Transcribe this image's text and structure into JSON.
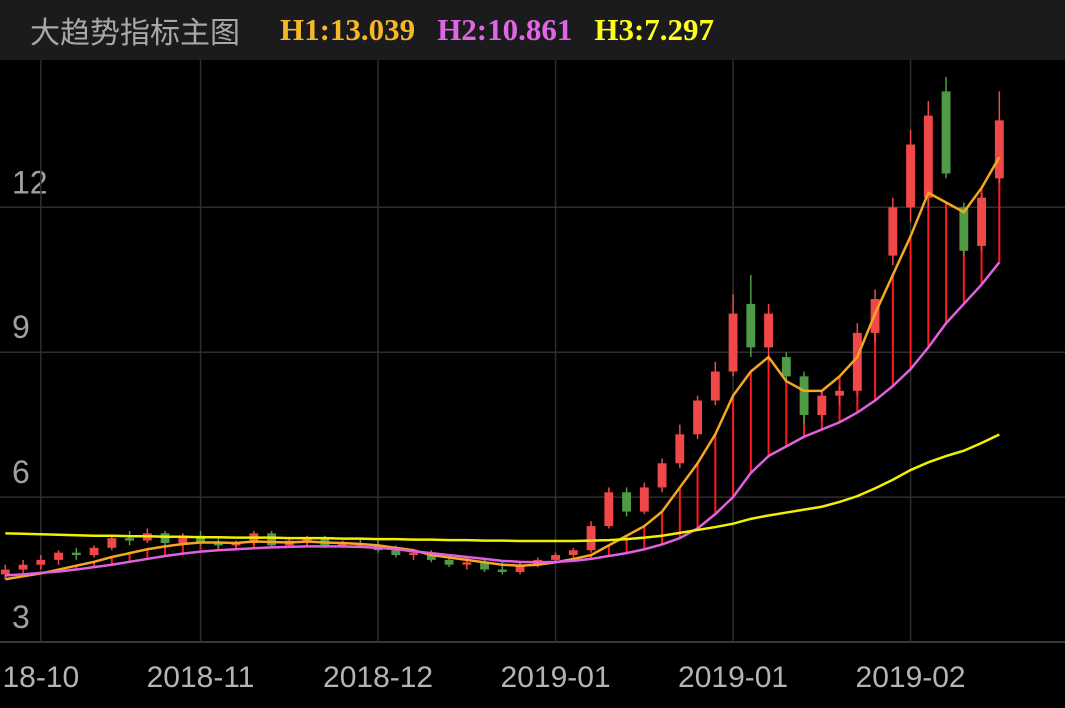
{
  "header": {
    "title": "大趋势指标主图"
  },
  "chart_data": {
    "type": "candlestick",
    "x": [
      0,
      1,
      2,
      3,
      4,
      5,
      6,
      7,
      8,
      9,
      10,
      11,
      12,
      13,
      14,
      15,
      16,
      17,
      18,
      19,
      20,
      21,
      22,
      23,
      24,
      25,
      26,
      27,
      28,
      29,
      30,
      31,
      32,
      33,
      34,
      35,
      36,
      37,
      38,
      39,
      40,
      41,
      42,
      43,
      44,
      45,
      46,
      47,
      48,
      49,
      50,
      51,
      52,
      53,
      54,
      55,
      56
    ],
    "xlim": [
      -0.3,
      59.7
    ],
    "xticks": [
      {
        "value": 2,
        "label": "18-10"
      },
      {
        "value": 11,
        "label": "2018-11"
      },
      {
        "value": 21,
        "label": "2018-12"
      },
      {
        "value": 31,
        "label": "2019-01"
      },
      {
        "value": 41,
        "label": "2019-01"
      },
      {
        "value": 51,
        "label": "2019-02"
      }
    ],
    "ylim": [
      3,
      15.05
    ],
    "yticks": [
      3,
      6,
      9,
      12
    ],
    "grid": true,
    "up_color": "#f04848",
    "down_color": "#4f9a46",
    "spread_up_color": "#ff1a1a",
    "spread_down_color": "#3355ff",
    "open": [
      4.4,
      4.5,
      4.6,
      4.7,
      4.85,
      4.8,
      4.95,
      5.15,
      5.1,
      5.25,
      5.05,
      5.2,
      5.05,
      5.0,
      5.05,
      5.25,
      5.0,
      5.1,
      5.15,
      5.0,
      5.05,
      5.0,
      4.9,
      4.8,
      4.85,
      4.7,
      4.6,
      4.65,
      4.5,
      4.45,
      4.6,
      4.7,
      4.8,
      4.9,
      5.4,
      6.1,
      5.7,
      6.2,
      6.7,
      7.3,
      8.0,
      8.6,
      10.0,
      9.1,
      8.9,
      8.5,
      7.7,
      8.1,
      8.2,
      9.4,
      11.0,
      12.0,
      12.2,
      14.4,
      12.0,
      11.2,
      12.6
    ],
    "high": [
      4.6,
      4.7,
      4.8,
      4.9,
      4.95,
      5.0,
      5.2,
      5.3,
      5.35,
      5.3,
      5.25,
      5.3,
      5.15,
      5.1,
      5.3,
      5.3,
      5.15,
      5.2,
      5.2,
      5.1,
      5.15,
      5.1,
      5.0,
      4.9,
      4.9,
      4.8,
      4.75,
      4.7,
      4.6,
      4.65,
      4.75,
      4.85,
      4.95,
      5.5,
      6.2,
      6.2,
      6.3,
      6.8,
      7.5,
      8.1,
      8.8,
      10.2,
      10.6,
      10.0,
      9.0,
      8.6,
      8.2,
      8.3,
      9.6,
      10.3,
      12.2,
      13.6,
      14.2,
      14.7,
      12.1,
      12.3,
      14.4
    ],
    "low": [
      4.3,
      4.4,
      4.5,
      4.6,
      4.7,
      4.75,
      4.9,
      5.0,
      5.05,
      5.0,
      5.0,
      5.0,
      4.95,
      4.9,
      5.0,
      4.95,
      4.95,
      5.0,
      4.95,
      4.95,
      4.95,
      4.85,
      4.75,
      4.7,
      4.65,
      4.55,
      4.5,
      4.45,
      4.4,
      4.4,
      4.55,
      4.65,
      4.75,
      4.85,
      5.35,
      5.6,
      5.65,
      6.1,
      6.6,
      7.2,
      7.9,
      8.5,
      8.9,
      8.8,
      8.4,
      7.5,
      7.6,
      7.9,
      8.1,
      9.2,
      10.8,
      11.7,
      12.0,
      12.6,
      11.0,
      11.1,
      12.5
    ],
    "close": [
      4.5,
      4.6,
      4.7,
      4.85,
      4.8,
      4.95,
      5.15,
      5.1,
      5.25,
      5.05,
      5.2,
      5.05,
      5.0,
      5.05,
      5.25,
      5.0,
      5.1,
      5.15,
      5.0,
      5.05,
      5.0,
      4.9,
      4.8,
      4.85,
      4.7,
      4.6,
      4.65,
      4.5,
      4.45,
      4.6,
      4.7,
      4.8,
      4.9,
      5.4,
      6.1,
      5.7,
      6.2,
      6.7,
      7.3,
      8.0,
      8.6,
      9.8,
      9.1,
      9.8,
      8.5,
      7.7,
      8.1,
      8.2,
      9.4,
      10.1,
      12.0,
      13.3,
      13.9,
      12.7,
      11.1,
      12.2,
      13.8
    ],
    "series": [
      {
        "label": "H1:13.039",
        "color": "#f5a623",
        "text_color": "#f5b829",
        "values": [
          4.3,
          4.36,
          4.42,
          4.5,
          4.58,
          4.66,
          4.76,
          4.84,
          4.92,
          4.98,
          5.03,
          5.06,
          5.06,
          5.05,
          5.08,
          5.07,
          5.06,
          5.08,
          5.06,
          5.05,
          5.03,
          5.0,
          4.95,
          4.9,
          4.8,
          4.75,
          4.7,
          4.65,
          4.6,
          4.58,
          4.6,
          4.65,
          4.72,
          4.8,
          5.0,
          5.2,
          5.4,
          5.7,
          6.2,
          6.7,
          7.3,
          8.1,
          8.6,
          8.9,
          8.4,
          8.2,
          8.2,
          8.5,
          8.9,
          9.8,
          10.6,
          11.4,
          12.3,
          12.1,
          11.9,
          12.4,
          13.039
        ]
      },
      {
        "label": "H2:10.861",
        "color": "#e060e0",
        "text_color": "#e066e6",
        "values": [
          4.38,
          4.4,
          4.43,
          4.46,
          4.5,
          4.55,
          4.6,
          4.66,
          4.72,
          4.78,
          4.83,
          4.87,
          4.9,
          4.92,
          4.94,
          4.96,
          4.97,
          4.98,
          4.98,
          4.98,
          4.97,
          4.95,
          4.92,
          4.88,
          4.84,
          4.8,
          4.76,
          4.72,
          4.68,
          4.66,
          4.65,
          4.66,
          4.68,
          4.72,
          4.78,
          4.84,
          4.92,
          5.02,
          5.15,
          5.35,
          5.65,
          6.0,
          6.5,
          6.85,
          7.05,
          7.25,
          7.4,
          7.55,
          7.75,
          8.0,
          8.3,
          8.65,
          9.1,
          9.6,
          10.0,
          10.4,
          10.861
        ]
      },
      {
        "label": "H3:7.297",
        "color": "#f0f000",
        "text_color": "#ffff1e",
        "values": [
          5.25,
          5.24,
          5.23,
          5.22,
          5.21,
          5.2,
          5.2,
          5.19,
          5.19,
          5.18,
          5.18,
          5.17,
          5.17,
          5.16,
          5.16,
          5.16,
          5.15,
          5.15,
          5.15,
          5.14,
          5.14,
          5.13,
          5.13,
          5.12,
          5.12,
          5.11,
          5.11,
          5.1,
          5.1,
          5.09,
          5.09,
          5.09,
          5.09,
          5.1,
          5.11,
          5.13,
          5.16,
          5.2,
          5.26,
          5.32,
          5.38,
          5.45,
          5.55,
          5.62,
          5.68,
          5.74,
          5.8,
          5.9,
          6.02,
          6.18,
          6.36,
          6.56,
          6.72,
          6.85,
          6.96,
          7.12,
          7.297
        ]
      }
    ]
  }
}
